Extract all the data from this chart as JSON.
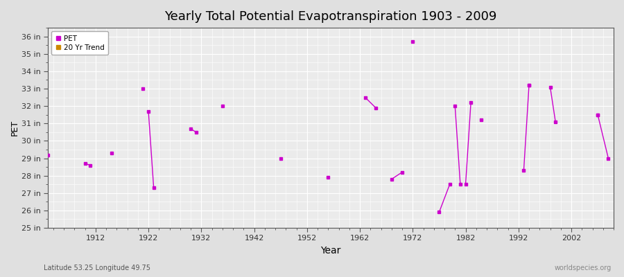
{
  "title": "Yearly Total Potential Evapotranspiration 1903 - 2009",
  "xlabel": "Year",
  "ylabel": "PET",
  "background_color": "#e0e0e0",
  "plot_bg_color": "#ebebeb",
  "grid_color": "#ffffff",
  "line_color": "#cc00cc",
  "trend_color": "#cc8800",
  "ylim": [
    25,
    36.5
  ],
  "xlim": [
    1903,
    2010
  ],
  "yticks": [
    25,
    26,
    27,
    28,
    29,
    30,
    31,
    32,
    33,
    34,
    35,
    36
  ],
  "ytick_labels": [
    "25 in",
    "26 in",
    "27 in",
    "28 in",
    "29 in",
    "30 in",
    "31 in",
    "32 in",
    "33 in",
    "34 in",
    "35 in",
    "36 in"
  ],
  "xticks": [
    1912,
    1922,
    1932,
    1942,
    1952,
    1962,
    1972,
    1982,
    1992,
    2002
  ],
  "subtitle_left": "Latitude 53.25 Longitude 49.75",
  "subtitle_right": "worldspecies.org",
  "isolated_points": [
    [
      1903,
      29.2
    ],
    [
      1915,
      29.3
    ],
    [
      1921,
      33.0
    ],
    [
      1936,
      32.0
    ],
    [
      1947,
      29.0
    ],
    [
      1956,
      27.9
    ],
    [
      1972,
      35.7
    ],
    [
      1985,
      31.2
    ],
    [
      1994,
      33.2
    ],
    [
      2007,
      31.5
    ]
  ],
  "connected_segments": [
    [
      [
        1910,
        28.7
      ],
      [
        1911,
        28.6
      ]
    ],
    [
      [
        1922,
        31.7
      ],
      [
        1923,
        27.3
      ]
    ],
    [
      [
        1930,
        30.7
      ],
      [
        1931,
        30.5
      ]
    ],
    [
      [
        1963,
        32.5
      ],
      [
        1965,
        31.9
      ]
    ],
    [
      [
        1968,
        27.8
      ],
      [
        1970,
        28.2
      ]
    ],
    [
      [
        1977,
        25.9
      ],
      [
        1979,
        27.5
      ]
    ],
    [
      [
        1980,
        32.0
      ],
      [
        1981,
        27.5
      ]
    ],
    [
      [
        1982,
        27.5
      ],
      [
        1983,
        32.2
      ]
    ],
    [
      [
        1993,
        28.3
      ],
      [
        1994,
        33.2
      ]
    ],
    [
      [
        1998,
        33.1
      ],
      [
        1999,
        31.1
      ]
    ],
    [
      [
        2007,
        31.5
      ],
      [
        2009,
        29.0
      ]
    ]
  ]
}
